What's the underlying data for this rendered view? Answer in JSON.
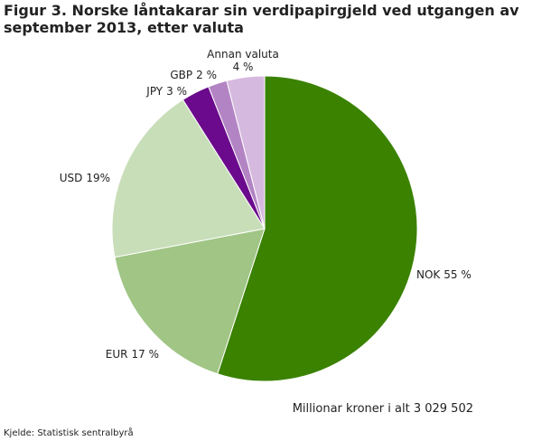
{
  "chart_data": {
    "type": "pie",
    "title": "Figur 3. Norske låntakarar sin verdipapirgjeld ved utgangen av september 2013, etter valuta",
    "categories": [
      "NOK",
      "EUR",
      "USD",
      "JPY",
      "GBP",
      "Annan valuta"
    ],
    "values": [
      55,
      17,
      19,
      3,
      2,
      4
    ],
    "value_labels": [
      "55 %",
      "17 %",
      "19%",
      "3 %",
      "2 %",
      "4 %"
    ],
    "colors": [
      "#3a8200",
      "#a0c585",
      "#c8deb9",
      "#6b0a8c",
      "#b384c4",
      "#d6b9df"
    ],
    "annotation": "Millionar kroner i alt 3 029 502",
    "source": "Kjelde: Statistisk sentralbyrå"
  }
}
